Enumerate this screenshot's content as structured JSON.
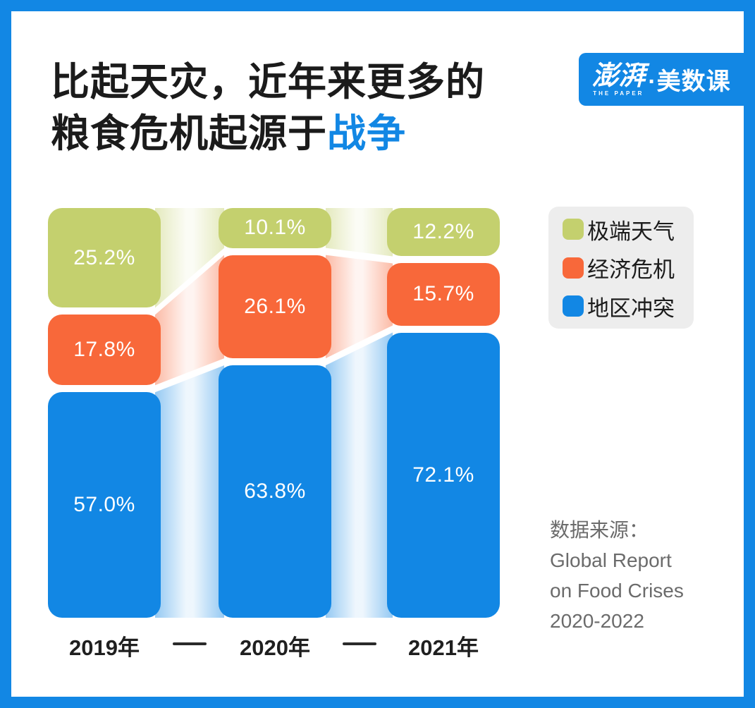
{
  "page": {
    "background": "#ffffff",
    "frame_color": "#1287e4"
  },
  "header": {
    "title_line1": "比起天灾，近年来更多的",
    "title_line2_prefix": "粮食危机起源于",
    "title_line2_highlight": "战争",
    "highlight_color": "#1287e4"
  },
  "logo": {
    "cn": "澎湃",
    "en": "THE PAPER",
    "suffix": "·美数课",
    "bg_color": "#1287e4"
  },
  "chart_data": {
    "type": "bar",
    "stacked": true,
    "orientation": "vertical",
    "categories": [
      "2019年",
      "2020年",
      "2021年"
    ],
    "series": [
      {
        "name": "极端天气",
        "color": "#c4d06e",
        "values": [
          25.2,
          10.1,
          12.2
        ]
      },
      {
        "name": "经济危机",
        "color": "#f8683a",
        "values": [
          17.8,
          26.1,
          15.7
        ]
      },
      {
        "name": "地区冲突",
        "color": "#1287e4",
        "values": [
          57.0,
          63.8,
          72.1
        ]
      }
    ],
    "value_suffix": "%",
    "value_label_color": "#ffffff",
    "ylim": [
      0,
      100
    ],
    "legend_position": "top-right",
    "grid": false,
    "connectors_between_columns": true
  },
  "source": {
    "label": "数据来源：",
    "lines": [
      "Global Report",
      "on Food Crises",
      "2020-2022"
    ]
  }
}
